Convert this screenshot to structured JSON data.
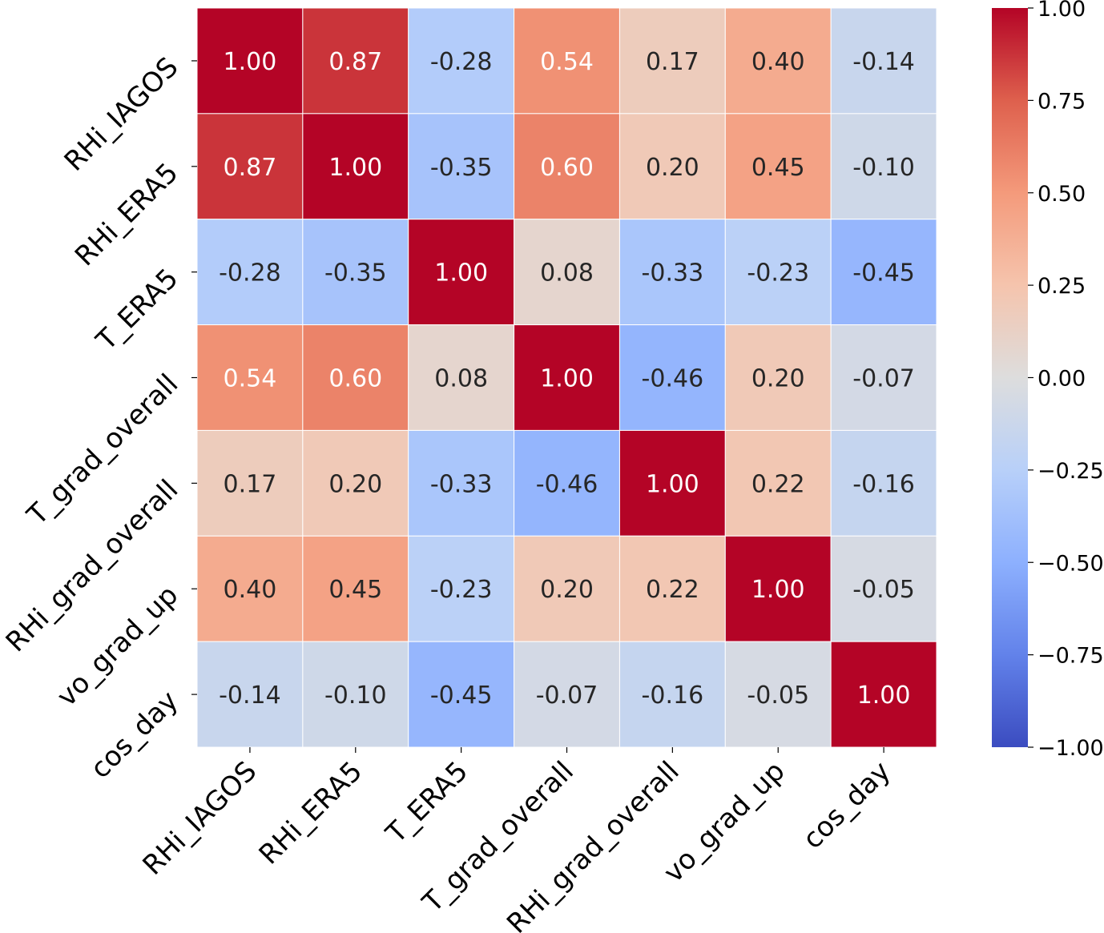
{
  "chart_data": {
    "type": "heatmap",
    "title": "",
    "xlabel": "",
    "ylabel": "",
    "colormap": "coolwarm",
    "value_range": [
      -1.0,
      1.0
    ],
    "annotation_format": "0.00",
    "rows": [
      "RHi_IAGOS",
      "RHi_ERA5",
      "T_ERA5",
      "T_grad_overall",
      "RHi_grad_overall",
      "vo_grad_up",
      "cos_day"
    ],
    "columns": [
      "RHi_IAGOS",
      "RHi_ERA5",
      "T_ERA5",
      "T_grad_overall",
      "RHi_grad_overall",
      "vo_grad_up",
      "cos_day"
    ],
    "values": [
      [
        1.0,
        0.87,
        -0.28,
        0.54,
        0.17,
        0.4,
        -0.14
      ],
      [
        0.87,
        1.0,
        -0.35,
        0.6,
        0.2,
        0.45,
        -0.1
      ],
      [
        -0.28,
        -0.35,
        1.0,
        0.08,
        -0.33,
        -0.23,
        -0.45
      ],
      [
        0.54,
        0.6,
        0.08,
        1.0,
        -0.46,
        0.2,
        -0.07
      ],
      [
        0.17,
        0.2,
        -0.33,
        -0.46,
        1.0,
        0.22,
        -0.16
      ],
      [
        0.4,
        0.45,
        -0.23,
        0.2,
        0.22,
        1.0,
        -0.05
      ],
      [
        -0.14,
        -0.1,
        -0.45,
        -0.07,
        -0.16,
        -0.05,
        1.0
      ]
    ],
    "colorbar": {
      "ticks": [
        1.0,
        0.75,
        0.5,
        0.25,
        0.0,
        -0.25,
        -0.5,
        -0.75,
        -1.0
      ],
      "tick_labels": [
        "1.00",
        "0.75",
        "0.50",
        "0.25",
        "0.00",
        "−0.25",
        "−0.50",
        "−0.75",
        "−1.00"
      ],
      "position": "right"
    },
    "grid": true,
    "colors": {
      "cell_border": "#ffffff",
      "dark_text": "#262626",
      "light_text": "#ffffff",
      "axis": "#000000"
    }
  }
}
